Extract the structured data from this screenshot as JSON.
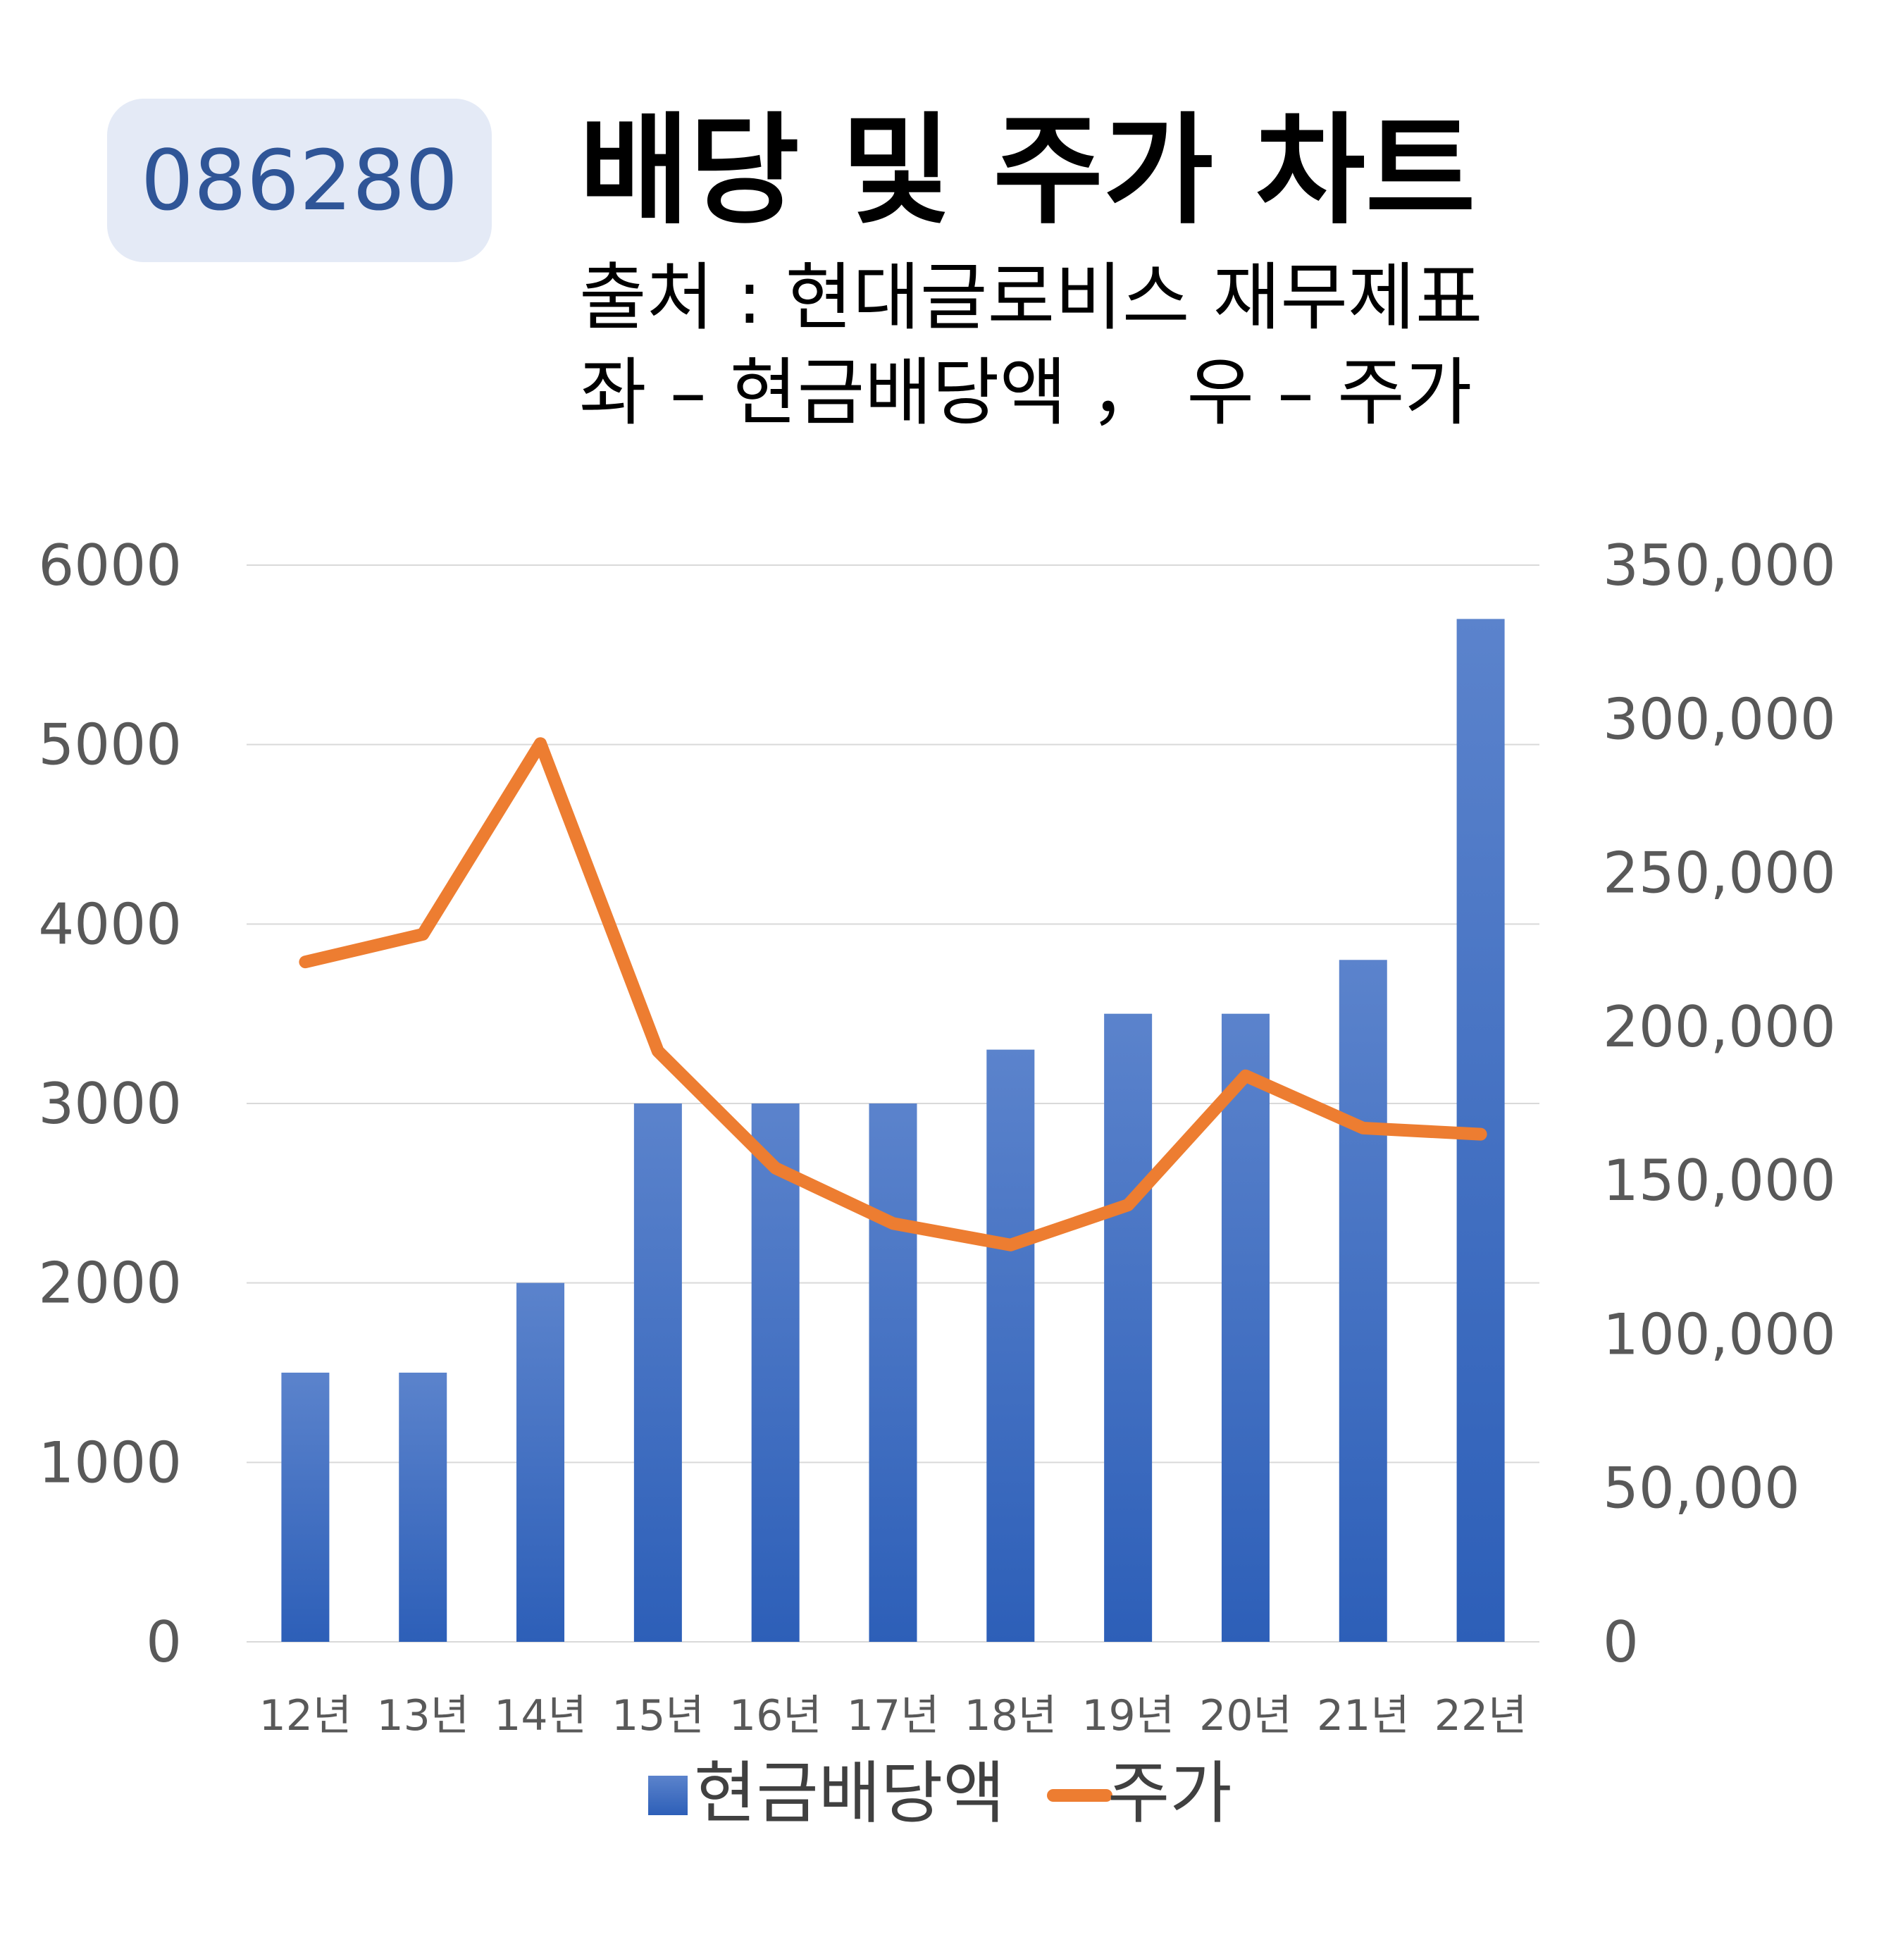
{
  "badge": "086280",
  "title": "배당 및 주가 차트",
  "subtitle_1": "출처 : 현대글로비스 재무제표",
  "subtitle_2": "좌 – 현금배당액 ， 우 – 주가",
  "colors": {
    "bar": "#4472c4",
    "line": "#ed7d31",
    "grid": "#d9d9d9",
    "badge_bg": "#e4eaf6",
    "badge_text": "#2f5597"
  },
  "chart_data": {
    "type": "bar",
    "categories": [
      "12년",
      "13년",
      "14년",
      "15년",
      "16년",
      "17년",
      "18년",
      "19년",
      "20년",
      "21년",
      "22년"
    ],
    "series": [
      {
        "name": "현금배당액",
        "type": "bar",
        "axis": "left",
        "values": [
          1500,
          1500,
          2000,
          3000,
          3000,
          3000,
          3300,
          3500,
          3500,
          3800,
          5700
        ]
      },
      {
        "name": "주가",
        "type": "line",
        "axis": "right",
        "values": [
          221000,
          230000,
          292000,
          192000,
          154000,
          136000,
          129000,
          142000,
          184000,
          167000,
          165000
        ]
      }
    ],
    "y_left": {
      "ticks": [
        "0",
        "1000",
        "2000",
        "3000",
        "4000",
        "5000",
        "6000"
      ],
      "lim": [
        0,
        6000
      ]
    },
    "y_right": {
      "ticks": [
        "0",
        "50,000",
        "100,000",
        "150,000",
        "200,000",
        "250,000",
        "300,000",
        "350,000"
      ],
      "lim": [
        0,
        350000
      ]
    },
    "grid": true,
    "legend": "bottom"
  }
}
